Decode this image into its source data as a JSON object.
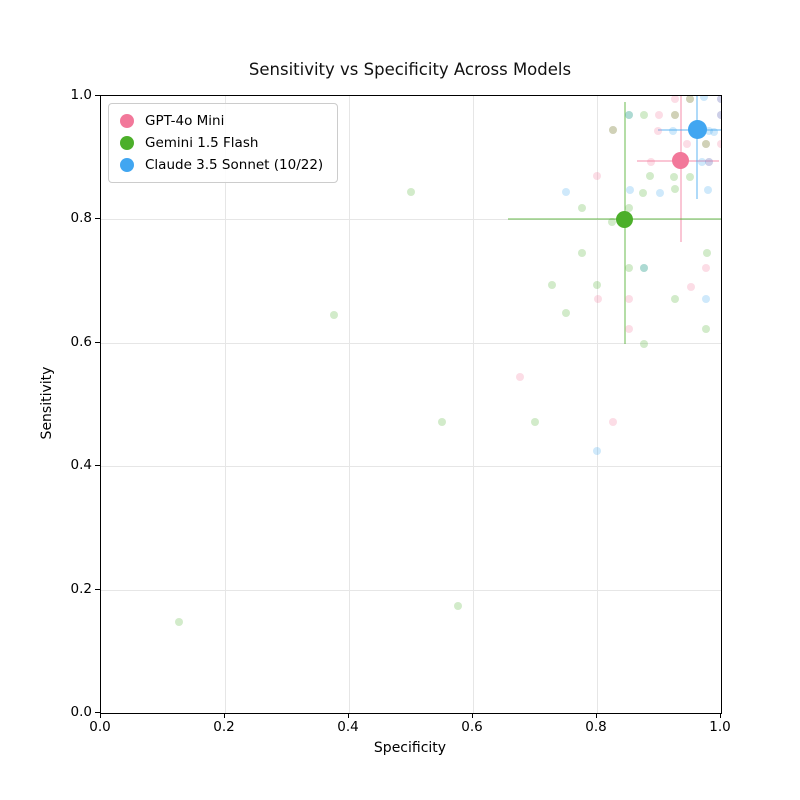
{
  "title": "Sensitivity vs Specificity Across Models",
  "axes": {
    "xlabel": "Specificity",
    "ylabel": "Sensitivity",
    "xlim": [
      0.0,
      1.0
    ],
    "ylim": [
      0.0,
      1.0
    ],
    "xticks": [
      {
        "v": 0.0,
        "label": "0.0"
      },
      {
        "v": 0.2,
        "label": "0.2"
      },
      {
        "v": 0.4,
        "label": "0.4"
      },
      {
        "v": 0.6,
        "label": "0.6"
      },
      {
        "v": 0.8,
        "label": "0.8"
      },
      {
        "v": 1.0,
        "label": "1.0"
      }
    ],
    "yticks": [
      {
        "v": 0.0,
        "label": "0.0"
      },
      {
        "v": 0.2,
        "label": "0.2"
      },
      {
        "v": 0.4,
        "label": "0.4"
      },
      {
        "v": 0.6,
        "label": "0.6"
      },
      {
        "v": 0.8,
        "label": "0.8"
      },
      {
        "v": 1.0,
        "label": "1.0"
      }
    ],
    "grid": true,
    "grid_color": "#e6e6e6"
  },
  "legend": {
    "position": "upper-left",
    "entries": [
      {
        "label": "GPT-4o Mini",
        "color": "#f2789a"
      },
      {
        "label": "Gemini 1.5 Flash",
        "color": "#4caf2a"
      },
      {
        "label": "Claude 3.5 Sonnet (10/22)",
        "color": "#41a6f1"
      }
    ]
  },
  "chart_data": {
    "type": "scatter",
    "title": "Sensitivity vs Specificity Across Models",
    "xlabel": "Specificity",
    "ylabel": "Sensitivity",
    "xlim": [
      0.0,
      1.0
    ],
    "ylim": [
      0.0,
      1.0
    ],
    "point_alpha": 0.25,
    "point_size": 8,
    "errorbar_alpha": 0.42,
    "series": [
      {
        "name": "GPT-4o Mini",
        "color": "#f2789a",
        "mean": {
          "x": 0.935,
          "y": 0.895
        },
        "xerr": [
          0.865,
          0.997
        ],
        "yerr": [
          0.763,
          1.0
        ],
        "mean_size": 17,
        "points": [
          [
            0.925,
            0.995
          ],
          [
            0.95,
            0.995
          ],
          [
            1.0,
            0.995
          ],
          [
            0.9,
            0.97
          ],
          [
            0.925,
            0.97
          ],
          [
            1.0,
            0.97
          ],
          [
            0.825,
            0.945
          ],
          [
            0.898,
            0.943
          ],
          [
            0.945,
            0.923
          ],
          [
            0.975,
            0.923
          ],
          [
            1.0,
            0.923
          ],
          [
            0.887,
            0.893
          ],
          [
            0.98,
            0.893
          ],
          [
            0.8,
            0.87
          ],
          [
            0.976,
            0.722
          ],
          [
            0.952,
            0.69
          ],
          [
            0.851,
            0.671
          ],
          [
            0.802,
            0.671
          ],
          [
            0.851,
            0.623
          ],
          [
            0.676,
            0.545
          ],
          [
            0.825,
            0.472
          ]
        ]
      },
      {
        "name": "Gemini 1.5 Flash",
        "color": "#4caf2a",
        "mean": {
          "x": 0.845,
          "y": 0.8
        },
        "xerr": [
          0.656,
          1.0
        ],
        "yerr": [
          0.598,
          0.99
        ],
        "mean_size": 17,
        "points": [
          [
            0.852,
            0.97
          ],
          [
            0.876,
            0.97
          ],
          [
            0.925,
            0.97
          ],
          [
            0.95,
            0.995
          ],
          [
            0.825,
            0.945
          ],
          [
            0.975,
            0.923
          ],
          [
            0.885,
            0.87
          ],
          [
            0.924,
            0.869
          ],
          [
            0.95,
            0.868
          ],
          [
            0.874,
            0.843
          ],
          [
            0.925,
            0.85
          ],
          [
            0.851,
            0.819
          ],
          [
            0.776,
            0.819
          ],
          [
            0.824,
            0.795
          ],
          [
            0.5,
            0.845
          ],
          [
            0.776,
            0.745
          ],
          [
            0.977,
            0.746
          ],
          [
            0.851,
            0.722
          ],
          [
            0.876,
            0.722
          ],
          [
            0.8,
            0.694
          ],
          [
            0.727,
            0.694
          ],
          [
            0.926,
            0.671
          ],
          [
            0.75,
            0.648
          ],
          [
            0.376,
            0.645
          ],
          [
            0.976,
            0.623
          ],
          [
            0.876,
            0.598
          ],
          [
            0.55,
            0.471
          ],
          [
            0.7,
            0.472
          ],
          [
            0.575,
            0.174
          ],
          [
            0.126,
            0.147
          ]
        ]
      },
      {
        "name": "Claude 3.5 Sonnet (10/22)",
        "color": "#41a6f1",
        "mean": {
          "x": 0.962,
          "y": 0.945
        },
        "xerr": [
          0.898,
          1.0
        ],
        "yerr": [
          0.833,
          1.0
        ],
        "mean_size": 19,
        "points": [
          [
            0.973,
            0.998
          ],
          [
            1.0,
            0.995
          ],
          [
            0.851,
            0.97
          ],
          [
            1.0,
            0.97
          ],
          [
            0.922,
            0.943
          ],
          [
            0.98,
            0.943
          ],
          [
            0.989,
            0.942
          ],
          [
            0.969,
            0.893
          ],
          [
            0.98,
            0.893
          ],
          [
            0.901,
            0.843
          ],
          [
            0.853,
            0.848
          ],
          [
            0.979,
            0.848
          ],
          [
            0.75,
            0.845
          ],
          [
            0.876,
            0.722
          ],
          [
            0.976,
            0.671
          ],
          [
            0.8,
            0.424
          ]
        ]
      }
    ]
  }
}
